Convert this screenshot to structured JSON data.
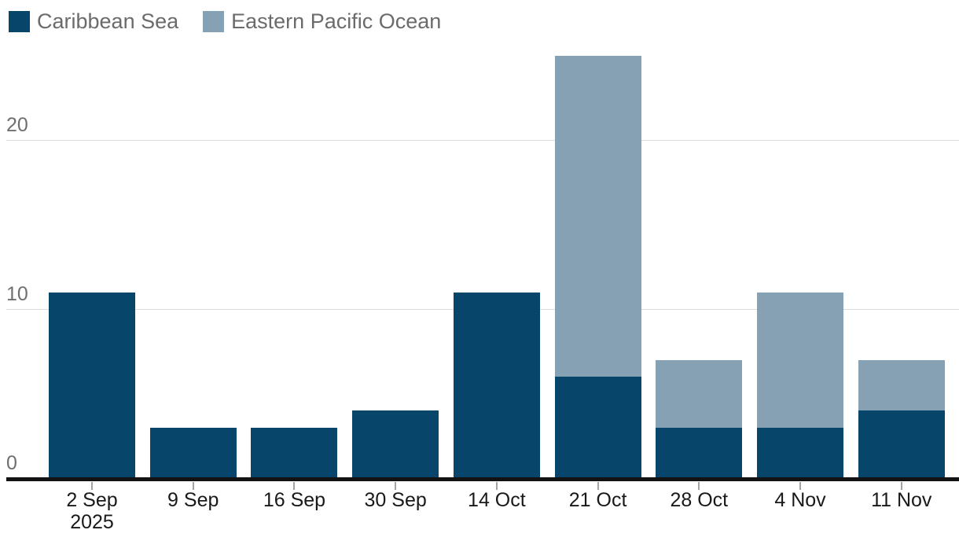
{
  "legend": {
    "items": [
      {
        "label": "Caribbean Sea",
        "color": "#07466a"
      },
      {
        "label": "Eastern Pacific Ocean",
        "color": "#87a1b4"
      }
    ]
  },
  "chart_data": {
    "type": "bar",
    "stacked": true,
    "title": "",
    "xlabel": "",
    "ylabel": "",
    "categories": [
      "2 Sep\n2025",
      "9 Sep",
      "16 Sep",
      "30 Sep",
      "14 Oct",
      "21 Oct",
      "28 Oct",
      "4 Nov",
      "11 Nov"
    ],
    "series": [
      {
        "name": "Caribbean Sea",
        "color": "#07466a",
        "values": [
          11,
          3,
          3,
          4,
          11,
          6,
          3,
          3,
          4
        ]
      },
      {
        "name": "Eastern Pacific Ocean",
        "color": "#87a1b4",
        "values": [
          0,
          0,
          0,
          0,
          0,
          19,
          4,
          8,
          3
        ]
      }
    ],
    "totals": [
      11,
      3,
      3,
      4,
      11,
      25,
      7,
      11,
      7
    ],
    "yticks": [
      0,
      10,
      20
    ],
    "ylim": [
      0,
      25
    ],
    "grid": "horizontal",
    "legend_position": "top-left"
  },
  "colors": {
    "background": "#ffffff",
    "gridline": "#dcdcdc",
    "axis_line": "#121212",
    "tick_mark": "#a3a3a3",
    "ytick_text": "#6f6f6f",
    "xtick_text": "#191919",
    "legend_text": "#6b6b6b"
  }
}
